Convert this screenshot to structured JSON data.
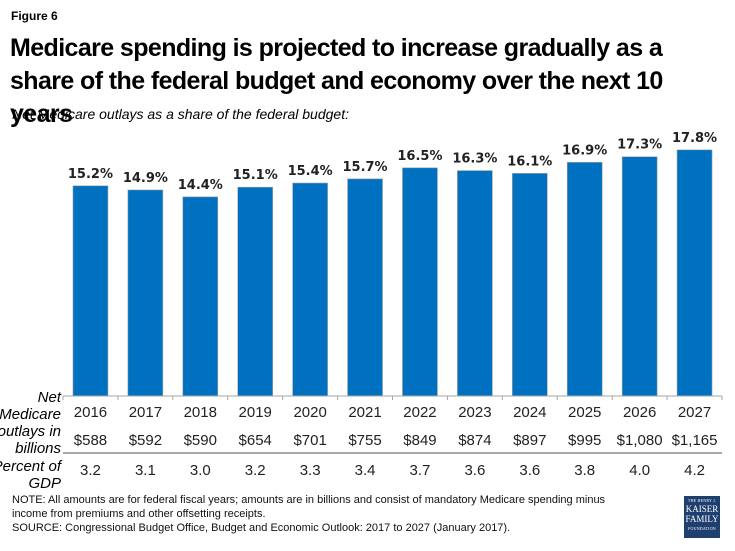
{
  "figure_label": "Figure 6",
  "title": "Medicare spending is projected to increase gradually as a share of the federal budget and economy over the next 10 years",
  "subtitle": "Net Medicare outlays as a share of the federal budget:",
  "row_labels": {
    "outlays": "Net Medicare outlays in billions",
    "gdp": "Percent of GDP"
  },
  "chart_data": {
    "type": "bar",
    "title": "Medicare spending is projected to increase gradually as a share of the federal budget and economy over the next 10 years",
    "subtitle": "Net Medicare outlays as a share of the federal budget:",
    "xlabel": "",
    "ylabel": "",
    "categories": [
      "2016",
      "2017",
      "2018",
      "2019",
      "2020",
      "2021",
      "2022",
      "2023",
      "2024",
      "2025",
      "2026",
      "2027"
    ],
    "values": [
      15.2,
      14.9,
      14.4,
      15.1,
      15.4,
      15.7,
      16.5,
      16.3,
      16.1,
      16.9,
      17.3,
      17.8
    ],
    "value_labels": [
      "15.2%",
      "14.9%",
      "14.4%",
      "15.1%",
      "15.4%",
      "15.7%",
      "16.5%",
      "16.3%",
      "16.1%",
      "16.9%",
      "17.3%",
      "17.8%"
    ],
    "unit": "% of federal budget",
    "ylim": [
      0,
      20
    ],
    "grid": false,
    "bar_color": "#0070c0",
    "table_rows": [
      {
        "name": "Net Medicare outlays in billions",
        "values": [
          "$588",
          "$592",
          "$590",
          "$654",
          "$701",
          "$755",
          "$849",
          "$874",
          "$897",
          "$995",
          "$1,080",
          "$1,165"
        ]
      },
      {
        "name": "Percent of GDP",
        "values": [
          "3.2",
          "3.1",
          "3.0",
          "3.2",
          "3.3",
          "3.4",
          "3.7",
          "3.6",
          "3.6",
          "3.8",
          "4.0",
          "4.2"
        ]
      }
    ]
  },
  "notes": {
    "note": "NOTE: All amounts are for federal fiscal years; amounts are in billions and consist of mandatory Medicare spending minus income from premiums and other offsetting receipts.",
    "source": "SOURCE: Congressional Budget Office, Budget and Economic Outlook: 2017 to 2027 (January 2017)."
  },
  "logo": {
    "line1": "THE HENRY J.",
    "line2": "KAISER",
    "line3": "FAMILY",
    "line4": "FOUNDATION"
  }
}
